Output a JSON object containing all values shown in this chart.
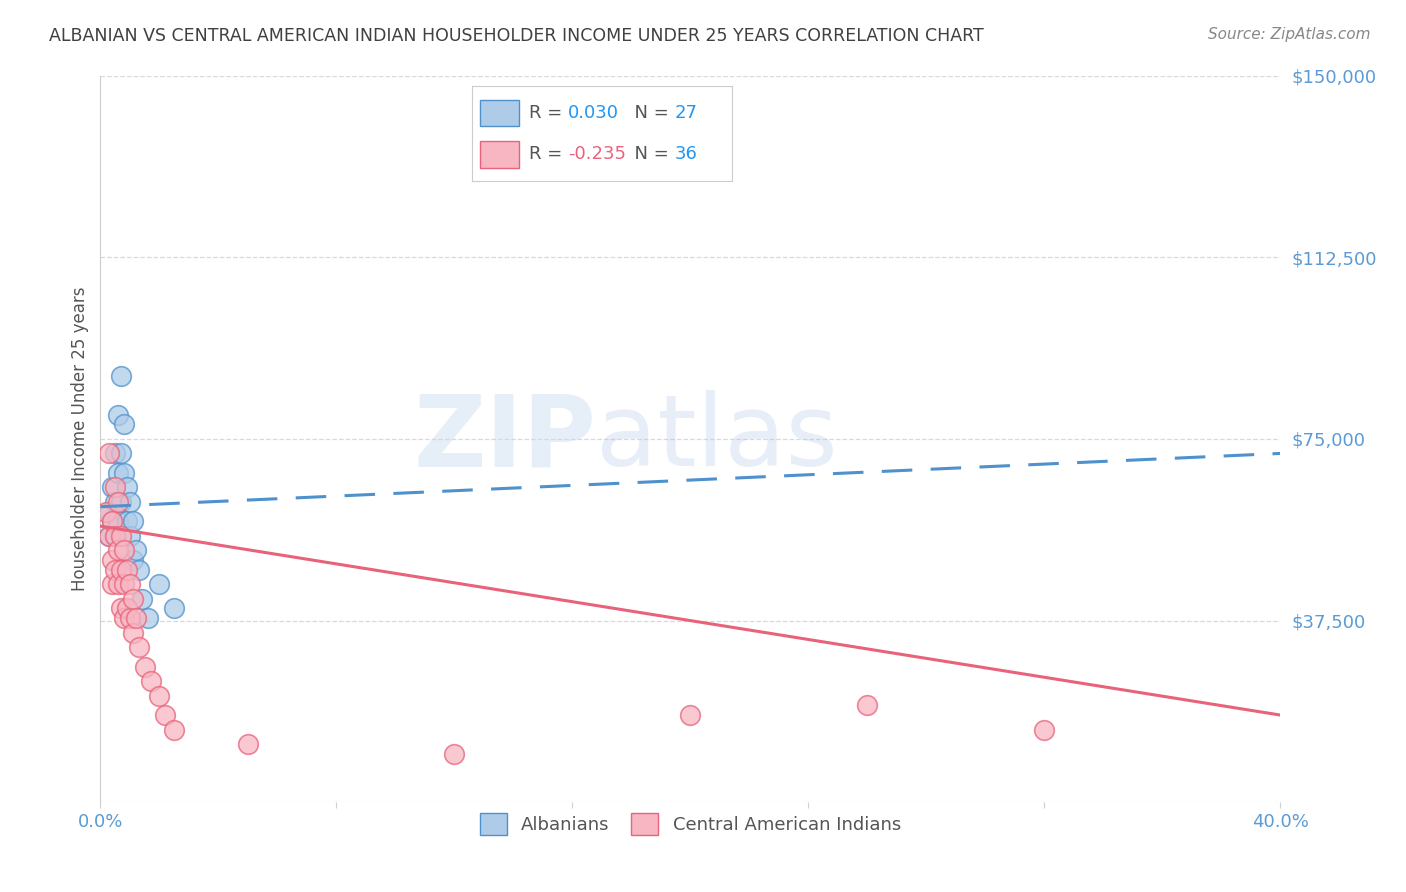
{
  "title": "ALBANIAN VS CENTRAL AMERICAN INDIAN HOUSEHOLDER INCOME UNDER 25 YEARS CORRELATION CHART",
  "source": "Source: ZipAtlas.com",
  "ylabel": "Householder Income Under 25 years",
  "watermark_zip": "ZIP",
  "watermark_atlas": "atlas",
  "xlim": [
    0.0,
    0.4
  ],
  "ylim": [
    0,
    150000
  ],
  "yticks": [
    0,
    37500,
    75000,
    112500,
    150000
  ],
  "xticks": [
    0.0,
    0.08,
    0.16,
    0.24,
    0.32,
    0.4
  ],
  "albanian_R": 0.03,
  "albanian_N": 27,
  "central_R": -0.235,
  "central_N": 36,
  "albanian_color": "#aecce8",
  "central_color": "#f7b6c2",
  "trend_albanian_color": "#4f91cd",
  "trend_central_color": "#e8637a",
  "background_color": "#ffffff",
  "grid_color": "#d0d0d0",
  "title_color": "#404040",
  "tick_color": "#5b9bd5",
  "source_color": "#888888",
  "legend_text_color": "#555555",
  "legend_r_albanian_color": "#2196f3",
  "legend_r_central_color": "#e8637a",
  "legend_n_color": "#2196f3",
  "albanian_x": [
    0.003,
    0.003,
    0.004,
    0.004,
    0.005,
    0.005,
    0.005,
    0.006,
    0.006,
    0.006,
    0.007,
    0.007,
    0.007,
    0.008,
    0.008,
    0.009,
    0.009,
    0.01,
    0.01,
    0.011,
    0.011,
    0.012,
    0.013,
    0.014,
    0.016,
    0.02,
    0.025
  ],
  "albanian_y": [
    60000,
    55000,
    65000,
    58000,
    72000,
    62000,
    55000,
    80000,
    68000,
    58000,
    88000,
    72000,
    62000,
    78000,
    68000,
    65000,
    58000,
    62000,
    55000,
    58000,
    50000,
    52000,
    48000,
    42000,
    38000,
    45000,
    40000
  ],
  "central_x": [
    0.002,
    0.003,
    0.003,
    0.004,
    0.004,
    0.004,
    0.005,
    0.005,
    0.005,
    0.006,
    0.006,
    0.006,
    0.007,
    0.007,
    0.007,
    0.008,
    0.008,
    0.008,
    0.009,
    0.009,
    0.01,
    0.01,
    0.011,
    0.011,
    0.012,
    0.013,
    0.015,
    0.017,
    0.02,
    0.022,
    0.025,
    0.05,
    0.12,
    0.2,
    0.26,
    0.32
  ],
  "central_y": [
    60000,
    72000,
    55000,
    58000,
    50000,
    45000,
    65000,
    55000,
    48000,
    62000,
    52000,
    45000,
    55000,
    48000,
    40000,
    52000,
    45000,
    38000,
    48000,
    40000,
    45000,
    38000,
    42000,
    35000,
    38000,
    32000,
    28000,
    25000,
    22000,
    18000,
    15000,
    12000,
    10000,
    18000,
    20000,
    15000
  ],
  "trend_alb_x0": 0.0,
  "trend_alb_y0": 61000,
  "trend_alb_x1": 0.4,
  "trend_alb_y1": 72000,
  "trend_cen_x0": 0.0,
  "trend_cen_y0": 57000,
  "trend_cen_x1": 0.4,
  "trend_cen_y1": 18000
}
